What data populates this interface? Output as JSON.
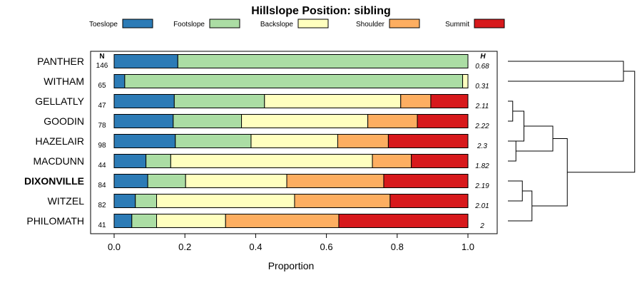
{
  "chart_data": {
    "type": "bar",
    "orientation": "horizontal",
    "stacked": true,
    "title": "Hillslope Position: sibling",
    "xlabel": "Proportion",
    "xlim": [
      0,
      1
    ],
    "xticks": [
      "0.0",
      "0.2",
      "0.4",
      "0.6",
      "0.8",
      "1.0"
    ],
    "xtick_values": [
      0,
      0.2,
      0.4,
      0.6,
      0.8,
      1.0
    ],
    "n_header": "N",
    "h_header": "H",
    "legend_position": "top",
    "categories": [
      {
        "name": "Toeslope",
        "color": "#2c7bb6"
      },
      {
        "name": "Footslope",
        "color": "#abdda4"
      },
      {
        "name": "Backslope",
        "color": "#ffffbf"
      },
      {
        "name": "Shoulder",
        "color": "#fdae61"
      },
      {
        "name": "Summit",
        "color": "#d7191c"
      }
    ],
    "rows": [
      {
        "label": "PANTHER",
        "n": "146",
        "h": "0.68",
        "bold": false,
        "values": [
          0.18,
          0.82,
          0,
          0,
          0
        ]
      },
      {
        "label": "WITHAM",
        "n": "65",
        "h": "0.31",
        "bold": false,
        "values": [
          0.03,
          0.955,
          0.015,
          0,
          0
        ]
      },
      {
        "label": "GELLATLY",
        "n": "47",
        "h": "2.11",
        "bold": false,
        "values": [
          0.17,
          0.255,
          0.385,
          0.085,
          0.105
        ]
      },
      {
        "label": "GOODIN",
        "n": "78",
        "h": "2.22",
        "bold": false,
        "values": [
          0.167,
          0.193,
          0.357,
          0.14,
          0.143
        ]
      },
      {
        "label": "HAZELAIR",
        "n": "98",
        "h": "2.3",
        "bold": false,
        "values": [
          0.173,
          0.214,
          0.245,
          0.143,
          0.225
        ]
      },
      {
        "label": "MACDUNN",
        "n": "44",
        "h": "1.82",
        "bold": false,
        "values": [
          0.09,
          0.07,
          0.57,
          0.11,
          0.16
        ]
      },
      {
        "label": "DIXONVILLE",
        "n": "84",
        "h": "2.19",
        "bold": true,
        "values": [
          0.095,
          0.107,
          0.286,
          0.274,
          0.238
        ]
      },
      {
        "label": "WITZEL",
        "n": "82",
        "h": "2.01",
        "bold": false,
        "values": [
          0.06,
          0.06,
          0.39,
          0.27,
          0.22
        ]
      },
      {
        "label": "PHILOMATH",
        "n": "41",
        "h": "2",
        "bold": false,
        "values": [
          0.05,
          0.07,
          0.195,
          0.32,
          0.365
        ]
      }
    ],
    "dendrogram": {
      "merges": [
        {
          "a": "r0",
          "b": "r1",
          "height": 3.6
        },
        {
          "a": "r2",
          "b": "r3",
          "height": 0.15
        },
        {
          "a": "r4",
          "b": "r5",
          "height": 0.25
        },
        {
          "a": "m1",
          "b": "r4",
          "height": 0.5
        },
        {
          "a": "m3",
          "b": "m2",
          "height": 1.4
        },
        {
          "a": "r6",
          "b": "r7",
          "height": 0.45
        },
        {
          "a": "r8",
          "b": "m5",
          "height": 0.75
        },
        {
          "a": "m4",
          "b": "m6",
          "height": 1.85
        },
        {
          "a": "m0",
          "b": "m7",
          "height": 3.95
        }
      ],
      "max_height": 4.0
    }
  }
}
